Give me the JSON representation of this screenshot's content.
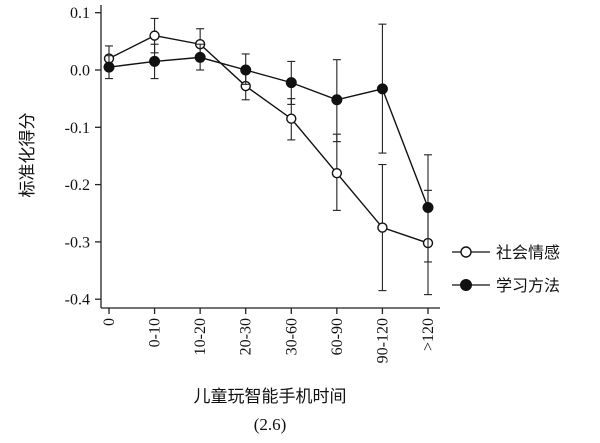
{
  "chart_data": {
    "type": "line",
    "xlabel": "儿童玩智能手机时间",
    "ylabel": "标准化得分",
    "caption": "(2.6)",
    "categories": [
      "0",
      "0-10",
      "10-20",
      "20-30",
      "30-60",
      "60-90",
      "90-120",
      ">120"
    ],
    "ylim": [
      -0.42,
      0.1
    ],
    "yticks": [
      0.1,
      0.0,
      -0.1,
      -0.2,
      -0.3,
      -0.4
    ],
    "ytick_labels": [
      "0.1",
      "0.0",
      "-0.1",
      "-0.2",
      "-0.3",
      "-0.4"
    ],
    "grid": false,
    "legend_position": "right",
    "series": [
      {
        "name": "社会情感",
        "marker": "open-circle",
        "values": [
          0.02,
          0.06,
          0.045,
          -0.028,
          -0.085,
          -0.18,
          -0.275,
          -0.302
        ],
        "err_low": [
          0.0,
          0.03,
          0.018,
          -0.052,
          -0.122,
          -0.245,
          -0.385,
          -0.392
        ],
        "err_high": [
          0.042,
          0.09,
          0.072,
          -0.005,
          -0.05,
          -0.112,
          -0.165,
          -0.21
        ]
      },
      {
        "name": "学习方法",
        "marker": "filled-circle",
        "values": [
          0.005,
          0.015,
          0.022,
          0.0,
          -0.022,
          -0.052,
          -0.033,
          -0.24
        ],
        "err_low": [
          -0.015,
          -0.015,
          0.0,
          -0.025,
          -0.06,
          -0.125,
          -0.145,
          -0.335
        ],
        "err_high": [
          0.025,
          0.045,
          0.045,
          0.028,
          0.015,
          0.018,
          0.08,
          -0.148
        ]
      }
    ]
  }
}
